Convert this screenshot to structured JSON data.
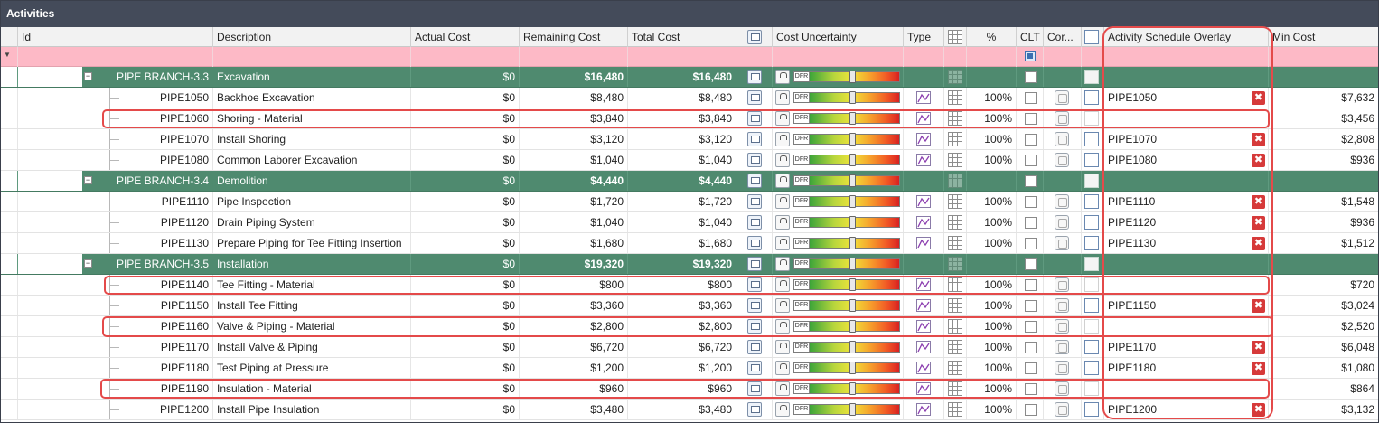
{
  "panel": {
    "title": "Activities"
  },
  "columns": {
    "id": "Id",
    "description": "Description",
    "actual_cost": "Actual Cost",
    "remaining_cost": "Remaining Cost",
    "total_cost": "Total Cost",
    "monitor_icon": "monitor-icon",
    "cost_uncertainty": "Cost Uncertainty",
    "type": "Type",
    "grid_icon": "grid-icon",
    "percent": "%",
    "clt": "CLT",
    "cor": "Cor...",
    "schedule_icon": "schedule-overlay-icon",
    "activity_schedule_overlay": "Activity Schedule Overlay",
    "min_cost": "Min Cost"
  },
  "bar_label": "DFR",
  "rows": [
    {
      "kind": "group",
      "id": "PIPE BRANCH-3.3",
      "desc": "Excavation",
      "actual": "$0",
      "remaining": "$16,480",
      "total": "$16,480",
      "pct": "",
      "overlay": "",
      "min": ""
    },
    {
      "kind": "item",
      "id": "PIPE1050",
      "desc": "Backhoe Excavation",
      "actual": "$0",
      "remaining": "$8,480",
      "total": "$8,480",
      "pct": "100%",
      "overlay": "PIPE1050",
      "min": "$7,632"
    },
    {
      "kind": "item",
      "id": "PIPE1060",
      "desc": "Shoring - Material",
      "actual": "$0",
      "remaining": "$3,840",
      "total": "$3,840",
      "pct": "100%",
      "overlay": "",
      "min": "$3,456"
    },
    {
      "kind": "item",
      "id": "PIPE1070",
      "desc": "Install Shoring",
      "actual": "$0",
      "remaining": "$3,120",
      "total": "$3,120",
      "pct": "100%",
      "overlay": "PIPE1070",
      "min": "$2,808"
    },
    {
      "kind": "item",
      "id": "PIPE1080",
      "desc": "Common Laborer Excavation",
      "actual": "$0",
      "remaining": "$1,040",
      "total": "$1,040",
      "pct": "100%",
      "overlay": "PIPE1080",
      "min": "$936"
    },
    {
      "kind": "group",
      "id": "PIPE BRANCH-3.4",
      "desc": "Demolition",
      "actual": "$0",
      "remaining": "$4,440",
      "total": "$4,440",
      "pct": "",
      "overlay": "",
      "min": ""
    },
    {
      "kind": "item",
      "id": "PIPE1110",
      "desc": "Pipe Inspection",
      "actual": "$0",
      "remaining": "$1,720",
      "total": "$1,720",
      "pct": "100%",
      "overlay": "PIPE1110",
      "min": "$1,548"
    },
    {
      "kind": "item",
      "id": "PIPE1120",
      "desc": "Drain Piping System",
      "actual": "$0",
      "remaining": "$1,040",
      "total": "$1,040",
      "pct": "100%",
      "overlay": "PIPE1120",
      "min": "$936"
    },
    {
      "kind": "item",
      "id": "PIPE1130",
      "desc": "Prepare Piping for Tee Fitting Insertion",
      "actual": "$0",
      "remaining": "$1,680",
      "total": "$1,680",
      "pct": "100%",
      "overlay": "PIPE1130",
      "min": "$1,512"
    },
    {
      "kind": "group",
      "id": "PIPE BRANCH-3.5",
      "desc": "Installation",
      "actual": "$0",
      "remaining": "$19,320",
      "total": "$19,320",
      "pct": "",
      "overlay": "",
      "min": ""
    },
    {
      "kind": "item",
      "id": "PIPE1140",
      "desc": "Tee Fitting - Material",
      "actual": "$0",
      "remaining": "$800",
      "total": "$800",
      "pct": "100%",
      "overlay": "",
      "min": "$720"
    },
    {
      "kind": "item",
      "id": "PIPE1150",
      "desc": "Install Tee Fitting",
      "actual": "$0",
      "remaining": "$3,360",
      "total": "$3,360",
      "pct": "100%",
      "overlay": "PIPE1150",
      "min": "$3,024"
    },
    {
      "kind": "item",
      "id": "PIPE1160",
      "desc": "Valve & Piping - Material",
      "actual": "$0",
      "remaining": "$2,800",
      "total": "$2,800",
      "pct": "100%",
      "overlay": "",
      "min": "$2,520"
    },
    {
      "kind": "item",
      "id": "PIPE1170",
      "desc": "Install Valve & Piping",
      "actual": "$0",
      "remaining": "$6,720",
      "total": "$6,720",
      "pct": "100%",
      "overlay": "PIPE1170",
      "min": "$6,048"
    },
    {
      "kind": "item",
      "id": "PIPE1180",
      "desc": "Test Piping at Pressure",
      "actual": "$0",
      "remaining": "$1,200",
      "total": "$1,200",
      "pct": "100%",
      "overlay": "PIPE1180",
      "min": "$1,080"
    },
    {
      "kind": "item",
      "id": "PIPE1190",
      "desc": "Insulation - Material",
      "actual": "$0",
      "remaining": "$960",
      "total": "$960",
      "pct": "100%",
      "overlay": "",
      "min": "$864"
    },
    {
      "kind": "item",
      "id": "PIPE1200",
      "desc": "Install Pipe Insulation",
      "actual": "$0",
      "remaining": "$3,480",
      "total": "$3,480",
      "pct": "100%",
      "overlay": "PIPE1200",
      "min": "$3,132"
    }
  ],
  "colors": {
    "title_bar": "#444b5a",
    "group_row": "#4f8a6f",
    "filter_row": "#fdb9c6",
    "highlight": "#e44a4a",
    "remove_button": "#d63a3a"
  }
}
